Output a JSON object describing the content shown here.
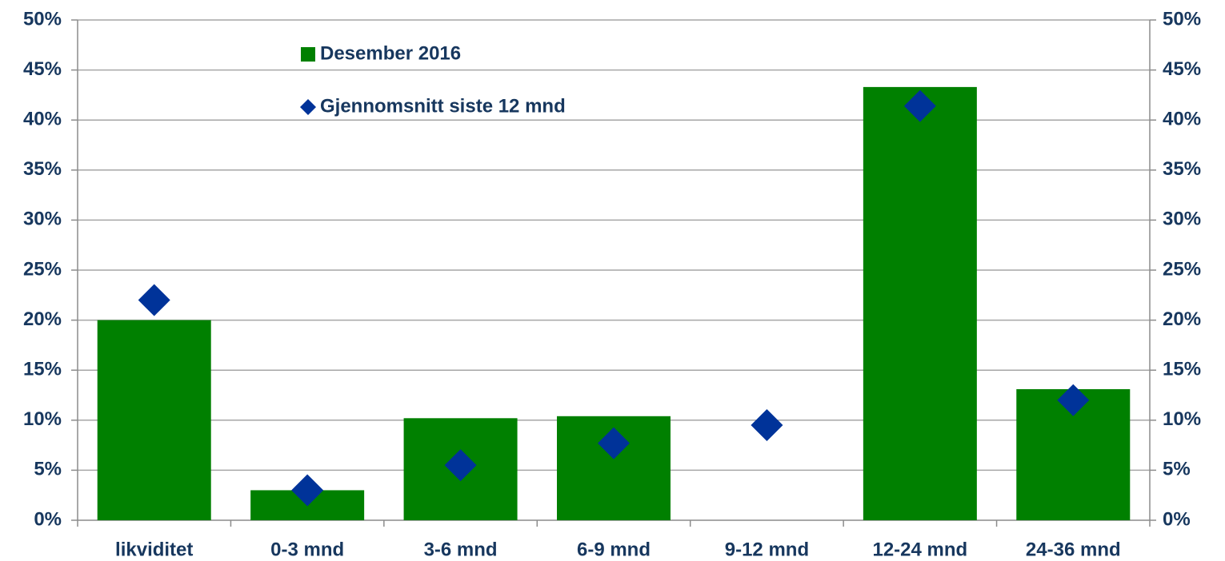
{
  "chart_data": {
    "type": "bar",
    "categories": [
      "likviditet",
      "0-3 mnd",
      "3-6 mnd",
      "6-9 mnd",
      "9-12 mnd",
      "12-24 mnd",
      "24-36 mnd"
    ],
    "series": [
      {
        "name": "Desember 2016",
        "type": "bar",
        "color": "#008000",
        "values": [
          20,
          3,
          10.2,
          10.4,
          0,
          43.3,
          13.1
        ]
      },
      {
        "name": "Gjennomsnitt siste 12 mnd",
        "type": "scatter",
        "color": "#003399",
        "values": [
          22,
          3,
          5.5,
          7.7,
          9.5,
          41.4,
          12
        ]
      }
    ],
    "ylim": [
      0,
      50
    ],
    "yticks": [
      {
        "value": 0,
        "label": "0%"
      },
      {
        "value": 5,
        "label": "5%"
      },
      {
        "value": 10,
        "label": "10%"
      },
      {
        "value": 15,
        "label": "15%"
      },
      {
        "value": 20,
        "label": "20%"
      },
      {
        "value": 25,
        "label": "25%"
      },
      {
        "value": 30,
        "label": "30%"
      },
      {
        "value": 35,
        "label": "35%"
      },
      {
        "value": 40,
        "label": "40%"
      },
      {
        "value": 45,
        "label": "45%"
      },
      {
        "value": 50,
        "label": "50%"
      }
    ],
    "y2lim": [
      0,
      50
    ],
    "y2ticks": [
      {
        "value": 0,
        "label": "0%"
      },
      {
        "value": 5,
        "label": "5%"
      },
      {
        "value": 10,
        "label": "10%"
      },
      {
        "value": 15,
        "label": "15%"
      },
      {
        "value": 20,
        "label": "20%"
      },
      {
        "value": 25,
        "label": "25%"
      },
      {
        "value": 30,
        "label": "30%"
      },
      {
        "value": 35,
        "label": "35%"
      },
      {
        "value": 40,
        "label": "40%"
      },
      {
        "value": 45,
        "label": "45%"
      },
      {
        "value": 50,
        "label": "50%"
      }
    ],
    "grid": true
  }
}
